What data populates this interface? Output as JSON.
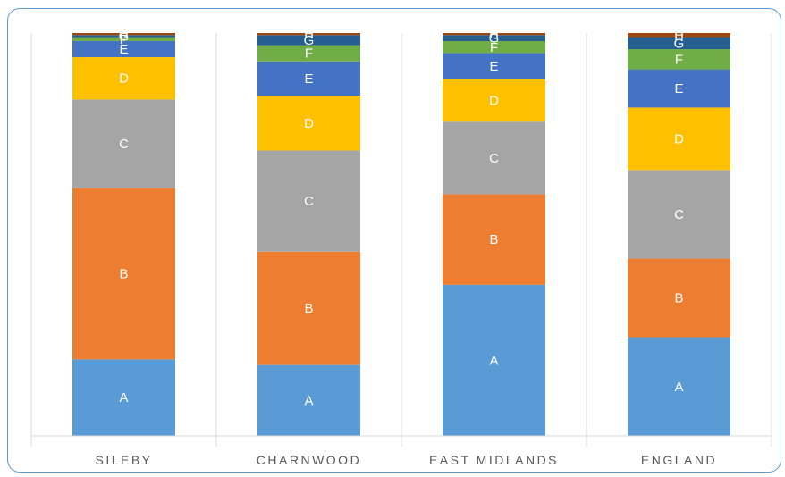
{
  "chart_data": {
    "type": "bar",
    "stacked": true,
    "normalized": true,
    "categories": [
      "SILEBY",
      "CHARNWOOD",
      "EAST MIDLANDS",
      "ENGLAND"
    ],
    "series": [
      {
        "name": "A",
        "color": "#5b9bd5",
        "values": [
          19.0,
          17.5,
          37.5,
          24.5
        ]
      },
      {
        "name": "B",
        "color": "#ed7d31",
        "values": [
          42.5,
          28.0,
          22.5,
          19.5
        ]
      },
      {
        "name": "C",
        "color": "#a5a5a5",
        "values": [
          22.0,
          25.0,
          18.0,
          22.0
        ]
      },
      {
        "name": "D",
        "color": "#ffc000",
        "values": [
          10.5,
          13.5,
          10.5,
          15.5
        ]
      },
      {
        "name": "E",
        "color": "#4472c4",
        "values": [
          4.0,
          8.5,
          6.5,
          9.5
        ]
      },
      {
        "name": "F",
        "color": "#70ad47",
        "values": [
          1.0,
          4.0,
          3.0,
          5.0
        ]
      },
      {
        "name": "G",
        "color": "#255e91",
        "values": [
          0.5,
          2.5,
          1.5,
          3.0
        ]
      },
      {
        "name": "H",
        "color": "#9e480e",
        "values": [
          0.5,
          0.5,
          0.5,
          1.0
        ]
      }
    ],
    "ylim": [
      0,
      100
    ],
    "grid": "vertical category separators",
    "legend": "none"
  }
}
